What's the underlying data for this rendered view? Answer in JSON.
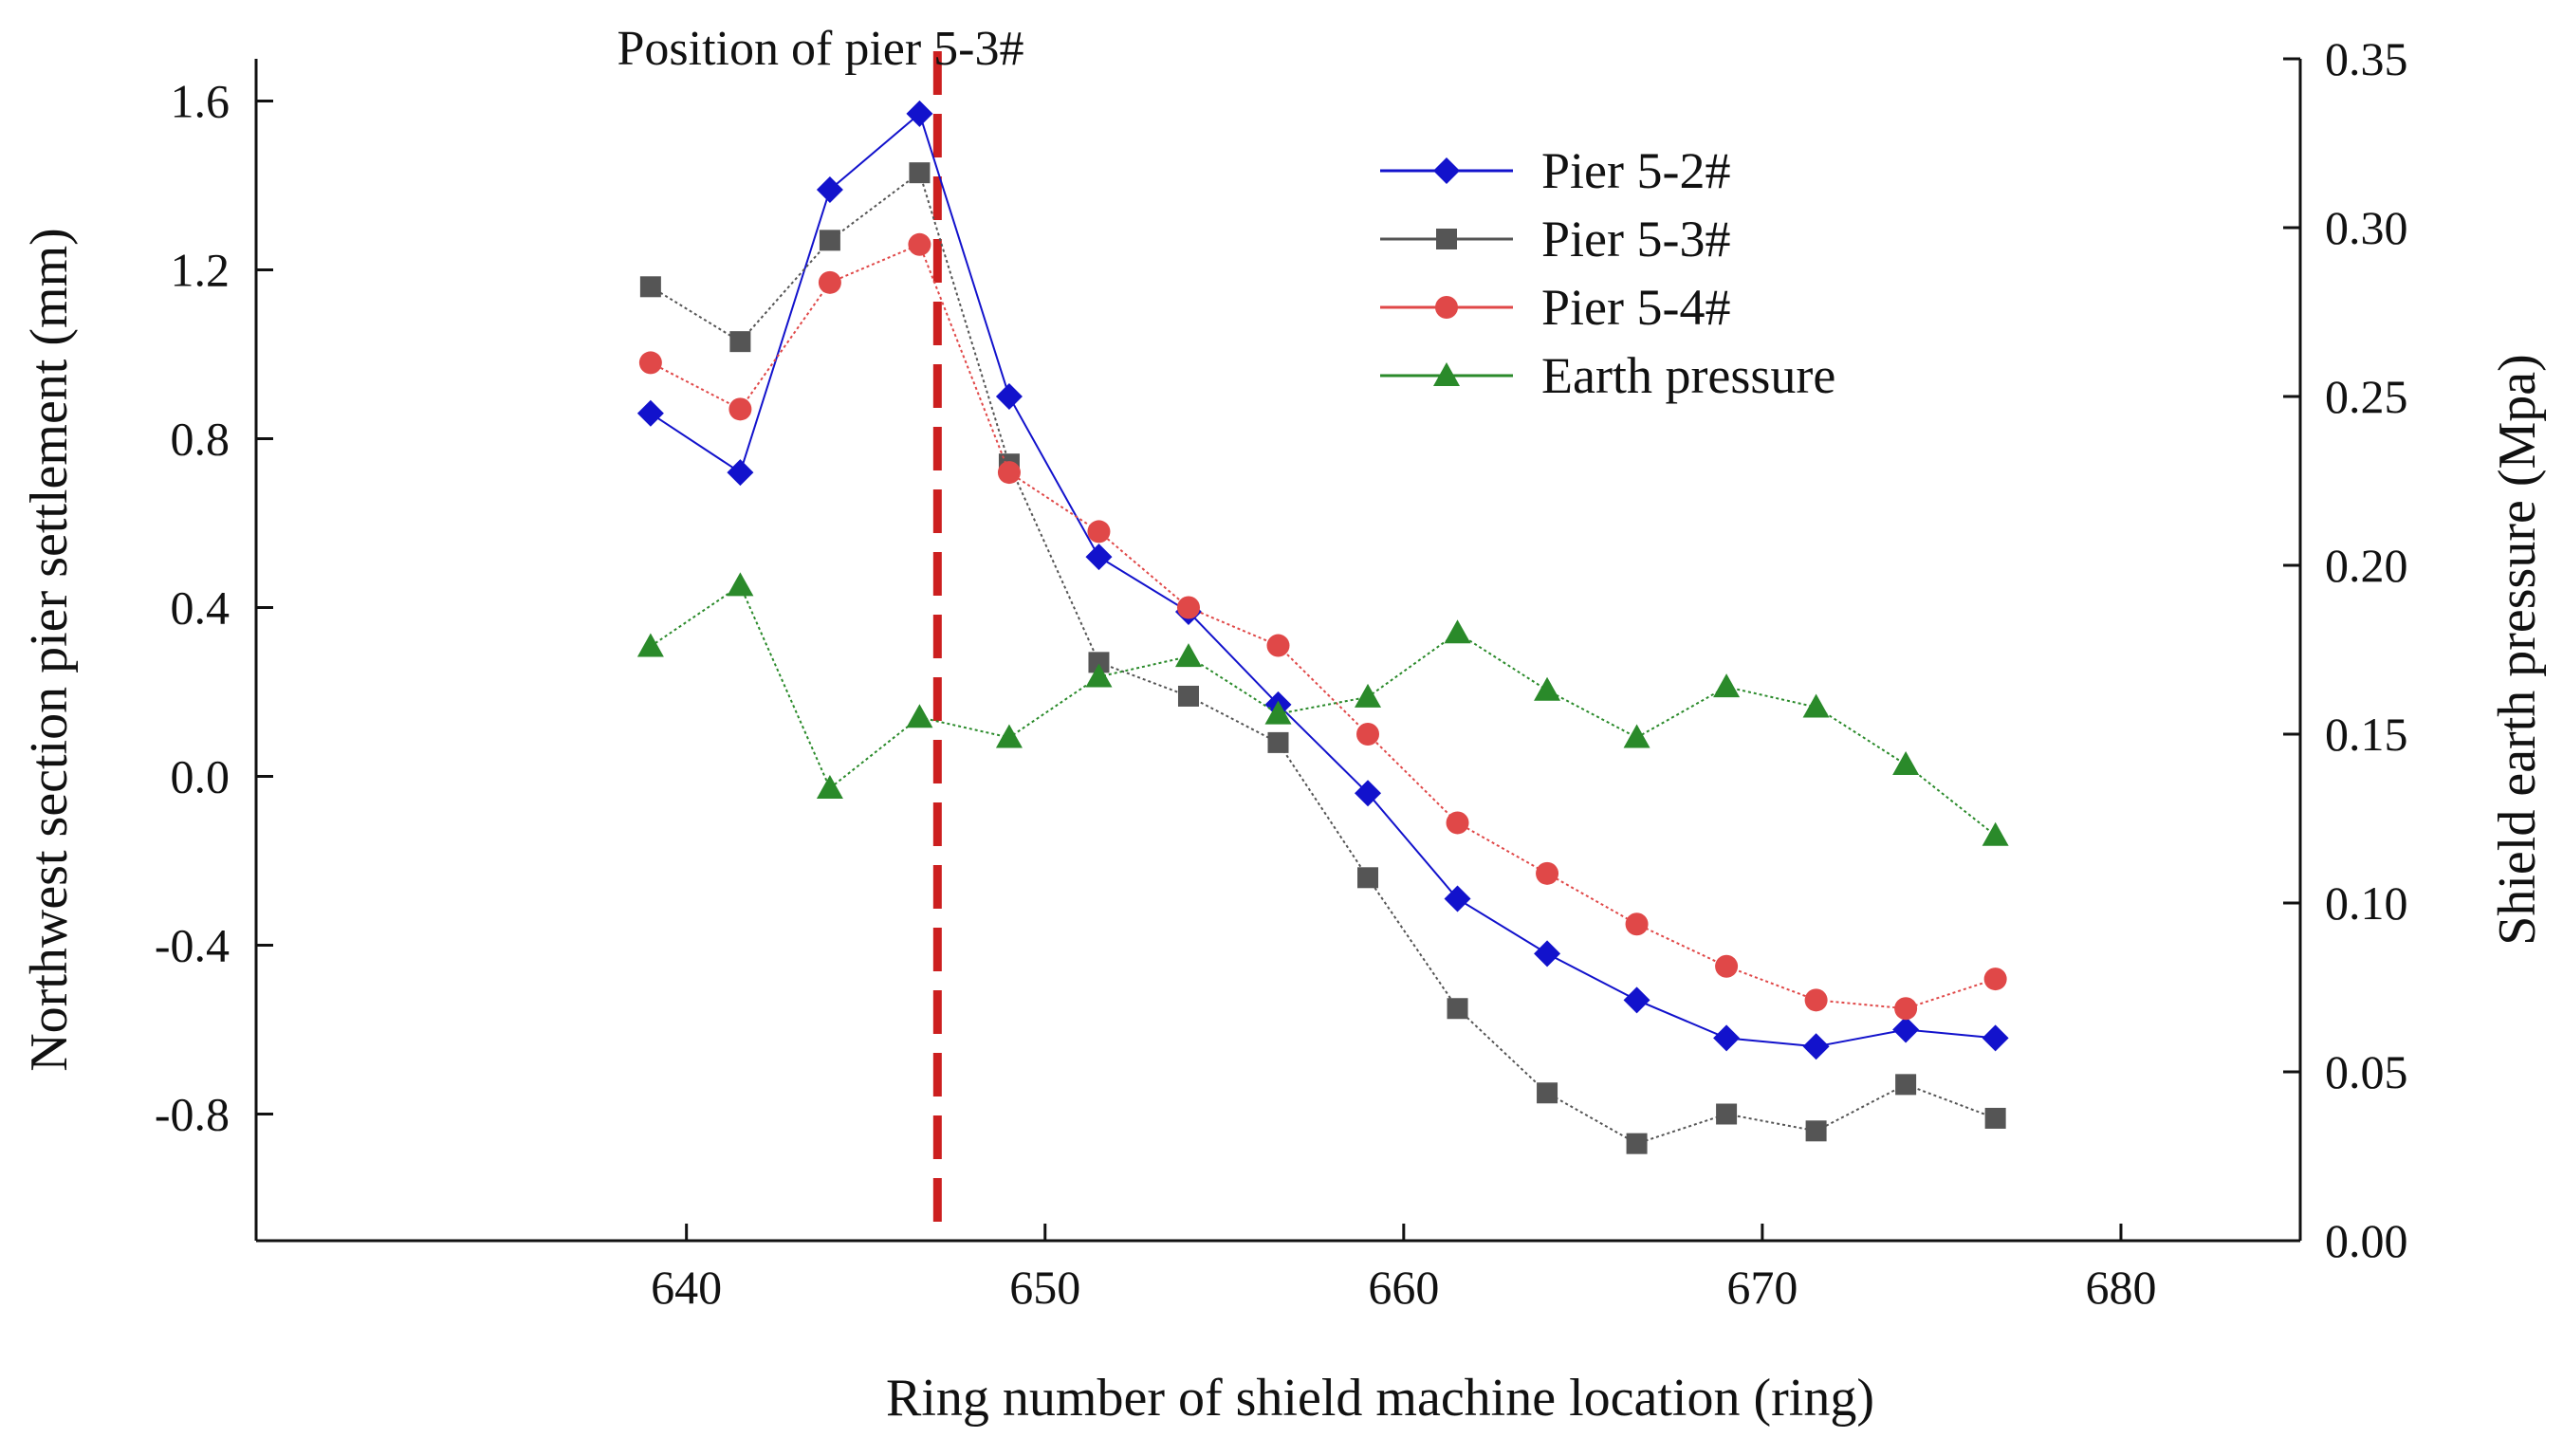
{
  "chart_data": {
    "type": "line",
    "title": "",
    "xlabel": "Ring number of shield machine location (ring)",
    "ylabel": "Northwest section pier settlement (mm)",
    "y2label": "Shield earth pressure (Mpa)",
    "xlim": [
      628,
      685
    ],
    "ylim": [
      -1.1,
      1.7
    ],
    "y2lim": [
      0.0,
      0.35
    ],
    "xticks": [
      640,
      650,
      660,
      670,
      680
    ],
    "xtick_labels": [
      "640",
      "650",
      "660",
      "670",
      "680"
    ],
    "yticks": [
      -0.8,
      -0.4,
      0.0,
      0.4,
      0.8,
      1.2,
      1.6
    ],
    "ytick_labels": [
      "-0.8",
      "-0.4",
      "0.0",
      "0.4",
      "0.8",
      "1.2",
      "1.6"
    ],
    "y2ticks": [
      0.0,
      0.05,
      0.1,
      0.15,
      0.2,
      0.25,
      0.3,
      0.35
    ],
    "y2tick_labels": [
      "0.00",
      "0.05",
      "0.10",
      "0.15",
      "0.20",
      "0.25",
      "0.30",
      "0.35"
    ],
    "x": [
      639,
      641.5,
      644,
      646.5,
      649,
      651.5,
      654,
      656.5,
      659,
      661.5,
      664,
      666.5,
      669,
      671.5,
      674,
      676.5
    ],
    "series": [
      {
        "name": "Pier 5-2#",
        "axis": "left",
        "marker": "diamond",
        "color": "#1212cc",
        "values": [
          0.86,
          0.72,
          1.39,
          1.57,
          0.9,
          0.52,
          0.39,
          0.17,
          -0.04,
          -0.29,
          -0.42,
          -0.53,
          -0.62,
          -0.64,
          -0.6,
          -0.62
        ]
      },
      {
        "name": "Pier 5-3#",
        "axis": "left",
        "marker": "square",
        "color": "#555555",
        "values": [
          1.16,
          1.03,
          1.27,
          1.43,
          0.74,
          0.27,
          0.19,
          0.08,
          -0.24,
          -0.55,
          -0.75,
          -0.87,
          -0.8,
          -0.84,
          -0.73,
          -0.81
        ]
      },
      {
        "name": "Pier 5-4#",
        "axis": "left",
        "marker": "circle",
        "color": "#e04848",
        "values": [
          0.98,
          0.87,
          1.17,
          1.26,
          0.72,
          0.58,
          0.4,
          0.31,
          0.1,
          -0.11,
          -0.23,
          -0.35,
          -0.45,
          -0.53,
          -0.55,
          -0.48
        ]
      },
      {
        "name": "Earth pressure",
        "axis": "right",
        "marker": "triangle",
        "color": "#2a8a2a",
        "values": [
          0.176,
          0.194,
          0.134,
          0.155,
          0.149,
          0.167,
          0.173,
          0.156,
          0.161,
          0.18,
          0.163,
          0.149,
          0.164,
          0.158,
          0.141,
          0.12
        ]
      }
    ],
    "annotations": [
      {
        "text": "Position of pier 5-3#",
        "x": 647
      }
    ],
    "legend": "top-right",
    "grid": false
  }
}
